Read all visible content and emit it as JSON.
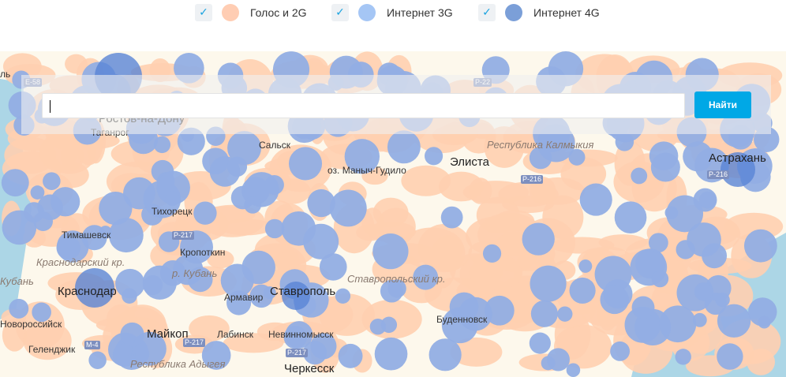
{
  "legend": [
    {
      "label": "Голос и 2G",
      "checked": true,
      "color": "#ffcdb3"
    },
    {
      "label": "Интернет 3G",
      "checked": true,
      "color": "#a5c6f5"
    },
    {
      "label": "Интернет 4G",
      "checked": true,
      "color": "#7b9fd8"
    }
  ],
  "check_glyph": "✓",
  "search": {
    "value": "",
    "button": "Найти"
  },
  "map": {
    "colors": {
      "background": "#fdf8ec",
      "voice": "#ffcfb0",
      "internet": "#92aee4",
      "internet4g": "#5a84d6",
      "sea": "#acd6e6"
    },
    "labels": [
      "Ростов-на-Дону",
      "Таганрог",
      "Сальск",
      "оз. Маныч-Гудило",
      "Элиста",
      "Республика Калмыкия",
      "Астрахань",
      "Тихорецк",
      "Тимашевск",
      "Краснодарский кр.",
      "Кропоткин",
      "р. Кубань",
      "Кубань",
      "Краснодар",
      "Армавир",
      "Ставрополь",
      "Ставропольский кр.",
      "Буденновск",
      "Новороссийск",
      "Майкоп",
      "Лабинск",
      "Невинномысск",
      "Геленджик",
      "Республика Адыгея",
      "Черкесск",
      "ль"
    ],
    "roads": [
      "E-58",
      "P-22",
      "P-216",
      "P-216",
      "P-217",
      "M-4",
      "P-217",
      "P-217"
    ]
  }
}
